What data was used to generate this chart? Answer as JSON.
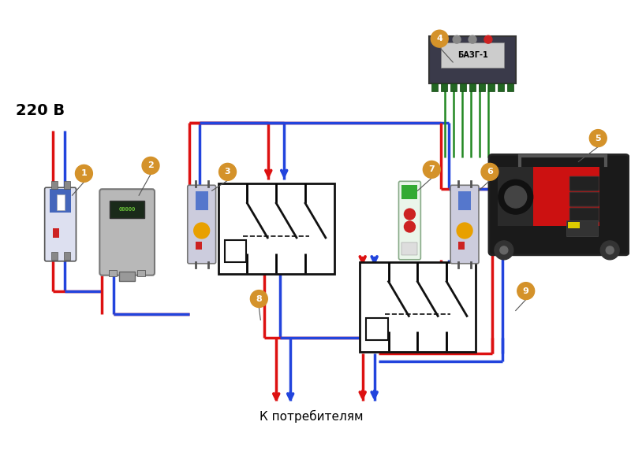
{
  "background_color": "#ffffff",
  "label_220": "220 В",
  "label_consumers": "К потребителям",
  "badge_color": "#d4922a",
  "badge_text_color": "#ffffff",
  "red_wire": "#dd1111",
  "blue_wire": "#2244dd",
  "green_wire": "#228822",
  "figsize": [
    8.0,
    5.78
  ],
  "dpi": 100
}
